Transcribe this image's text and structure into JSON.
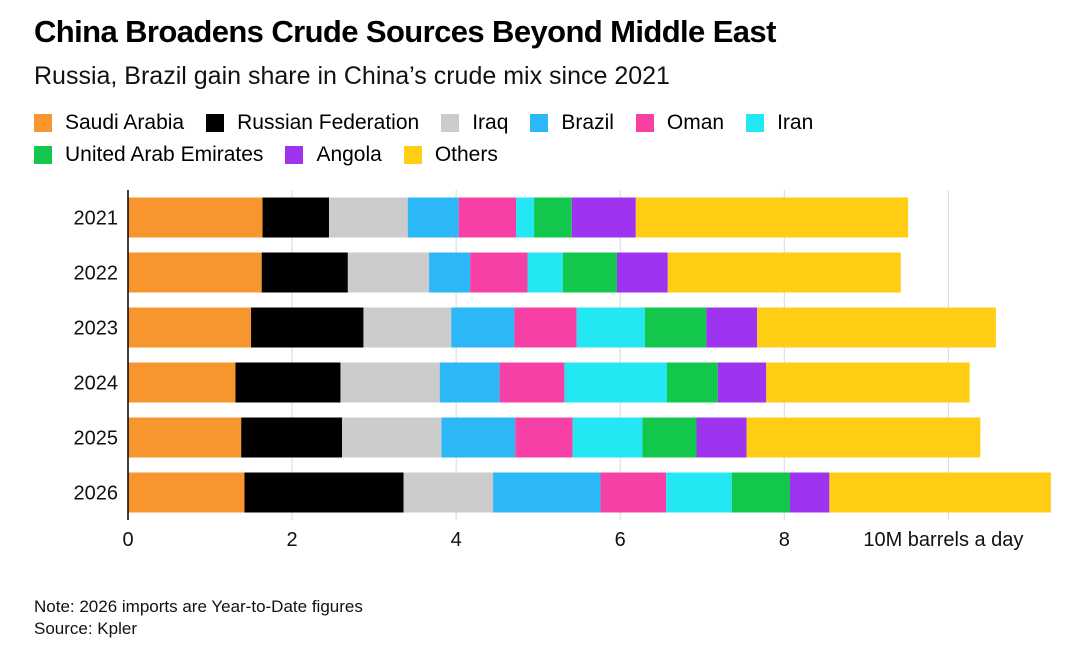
{
  "chart_data": {
    "type": "bar",
    "orientation": "horizontal",
    "stacked": true,
    "title": "China Broadens Crude Sources Beyond Middle East",
    "subtitle": "Russia, Brazil gain share in China’s crude mix since 2021",
    "categories": [
      "2021",
      "2022",
      "2023",
      "2024",
      "2025",
      "2026"
    ],
    "series": [
      {
        "name": "Saudi Arabia",
        "color": "#F7962E",
        "values": [
          1.64,
          1.63,
          1.5,
          1.31,
          1.38,
          1.42
        ]
      },
      {
        "name": "Russian Federation",
        "color": "#000000",
        "values": [
          0.81,
          1.05,
          1.37,
          1.28,
          1.23,
          1.94
        ]
      },
      {
        "name": "Iraq",
        "color": "#CCCCCC",
        "values": [
          0.96,
          0.99,
          1.07,
          1.21,
          1.21,
          1.09
        ]
      },
      {
        "name": "Brazil",
        "color": "#2CB7F6",
        "values": [
          0.62,
          0.5,
          0.77,
          0.73,
          0.9,
          1.31
        ]
      },
      {
        "name": "Oman",
        "color": "#F640A6",
        "values": [
          0.7,
          0.7,
          0.76,
          0.79,
          0.7,
          0.8
        ]
      },
      {
        "name": "Iran",
        "color": "#24E7F4",
        "values": [
          0.22,
          0.43,
          0.83,
          1.25,
          0.85,
          0.8
        ]
      },
      {
        "name": "United Arab Emirates",
        "color": "#12C74C",
        "values": [
          0.46,
          0.66,
          0.75,
          0.62,
          0.66,
          0.71
        ]
      },
      {
        "name": "Angola",
        "color": "#9E33F0",
        "values": [
          0.78,
          0.62,
          0.62,
          0.59,
          0.61,
          0.48
        ]
      },
      {
        "name": "Others",
        "color": "#FFCE14",
        "values": [
          3.32,
          2.84,
          2.91,
          2.48,
          2.85,
          2.7
        ]
      }
    ],
    "xlim": [
      0,
      11.3
    ],
    "xticks": [
      0,
      2,
      4,
      6,
      8,
      10
    ],
    "xtick_labels": [
      "0",
      "2",
      "4",
      "6",
      "8",
      "10M barrels a day"
    ],
    "xlabel": "",
    "ylabel": "",
    "grid": true,
    "legend_position": "top-left"
  },
  "footer": {
    "note": "Note: 2026 imports are Year-to-Date figures",
    "source": "Source: Kpler"
  }
}
